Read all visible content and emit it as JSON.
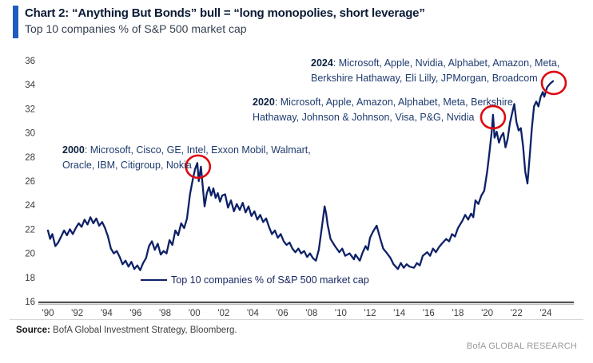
{
  "header": {
    "title": "Chart 2: “Anything But Bonds” bull = “long monopolies, short leverage”",
    "subtitle": "Top 10 companies % of S&P 500 market cap",
    "accent_color": "#1f5cbf"
  },
  "chart_data": {
    "type": "line",
    "title": "Top 10 companies % of S&P 500 market cap",
    "xlabel": "",
    "ylabel": "",
    "ylim": [
      16,
      36
    ],
    "xlim": [
      1989.8,
      2025.5
    ],
    "grid": false,
    "legend_position": "bottom-center",
    "line_color": "#0e2167",
    "circle_color": "#dd0a10",
    "y_ticks": [
      36,
      34,
      32,
      30,
      28,
      26,
      24,
      22,
      20,
      18,
      16
    ],
    "x_ticks": [
      {
        "value": 1990,
        "label": "'90"
      },
      {
        "value": 1992,
        "label": "'92"
      },
      {
        "value": 1994,
        "label": "'94"
      },
      {
        "value": 1996,
        "label": "'96"
      },
      {
        "value": 1998,
        "label": "'98"
      },
      {
        "value": 2000,
        "label": "'00"
      },
      {
        "value": 2002,
        "label": "'02"
      },
      {
        "value": 2004,
        "label": "'04"
      },
      {
        "value": 2006,
        "label": "'06"
      },
      {
        "value": 2008,
        "label": "'08"
      },
      {
        "value": 2010,
        "label": "'10"
      },
      {
        "value": 2012,
        "label": "'12"
      },
      {
        "value": 2014,
        "label": "'14"
      },
      {
        "value": 2016,
        "label": "'16"
      },
      {
        "value": 2018,
        "label": "'18"
      },
      {
        "value": 2020,
        "label": "'20"
      },
      {
        "value": 2022,
        "label": "'22"
      },
      {
        "value": 2024,
        "label": "'24"
      }
    ],
    "legend": {
      "label": "Top 10 companies % of S&P 500 market cap"
    },
    "annotations": [
      {
        "year": "2000",
        "line1_rest": ": Microsoft, Cisco, GE, Intel, Exxon Mobil, Walmart,",
        "line2": "Oracle, IBM, Citigroup, Nokia",
        "circle_at": [
          2000.25,
          27.2
        ]
      },
      {
        "year": "2020",
        "line1_rest": ": Microsoft, Apple, Amazon, Alphabet, Meta, Berkshire",
        "line2": "Hathaway, Johnson & Johnson, Visa, P&G, Nvidia",
        "circle_at": [
          2020.4,
          31.3
        ]
      },
      {
        "year": "2024",
        "line1_rest": ": Microsoft, Apple, Nvidia, Alphabet, Amazon, Meta,",
        "line2": "Berkshire Hathaway, Eli Lilly, JPMorgan, Broadcom",
        "circle_at": [
          2024.55,
          34.15
        ]
      }
    ],
    "series": [
      {
        "name": "Top 10 companies % of S&P 500 market cap",
        "color": "#0e2167",
        "points": [
          [
            1990,
            21.9
          ],
          [
            1990.15,
            21.2
          ],
          [
            1990.3,
            21.6
          ],
          [
            1990.5,
            20.6
          ],
          [
            1990.7,
            20.9
          ],
          [
            1990.9,
            21.4
          ],
          [
            1991.1,
            21.9
          ],
          [
            1991.3,
            21.5
          ],
          [
            1991.5,
            22
          ],
          [
            1991.7,
            21.6
          ],
          [
            1991.9,
            22.1
          ],
          [
            1992.1,
            22.5
          ],
          [
            1992.3,
            22.2
          ],
          [
            1992.5,
            22.8
          ],
          [
            1992.7,
            22.4
          ],
          [
            1992.9,
            23
          ],
          [
            1993.1,
            22.5
          ],
          [
            1993.3,
            22.9
          ],
          [
            1993.5,
            22.3
          ],
          [
            1993.7,
            22.6
          ],
          [
            1993.9,
            22.1
          ],
          [
            1994.1,
            21.4
          ],
          [
            1994.3,
            20.4
          ],
          [
            1994.5,
            20
          ],
          [
            1994.7,
            20.2
          ],
          [
            1994.9,
            19.7
          ],
          [
            1995.1,
            19.1
          ],
          [
            1995.3,
            19.4
          ],
          [
            1995.5,
            18.9
          ],
          [
            1995.7,
            19.3
          ],
          [
            1995.9,
            18.7
          ],
          [
            1996.1,
            19
          ],
          [
            1996.3,
            18.6
          ],
          [
            1996.5,
            19.2
          ],
          [
            1996.7,
            19.6
          ],
          [
            1996.9,
            20.6
          ],
          [
            1997.1,
            21
          ],
          [
            1997.3,
            20.3
          ],
          [
            1997.5,
            20.8
          ],
          [
            1997.7,
            19.9
          ],
          [
            1997.9,
            20.2
          ],
          [
            1998.1,
            20
          ],
          [
            1998.3,
            21.1
          ],
          [
            1998.5,
            20.7
          ],
          [
            1998.7,
            21.9
          ],
          [
            1998.9,
            21.5
          ],
          [
            1999.1,
            22.5
          ],
          [
            1999.3,
            22.1
          ],
          [
            1999.5,
            22.9
          ],
          [
            1999.7,
            24.9
          ],
          [
            1999.9,
            26.2
          ],
          [
            2000.05,
            27
          ],
          [
            2000.2,
            27.5
          ],
          [
            2000.3,
            26
          ],
          [
            2000.45,
            27.2
          ],
          [
            2000.6,
            25.2
          ],
          [
            2000.7,
            23.9
          ],
          [
            2000.85,
            25
          ],
          [
            2001,
            25.5
          ],
          [
            2001.15,
            24.8
          ],
          [
            2001.3,
            25.4
          ],
          [
            2001.45,
            24.6
          ],
          [
            2001.6,
            25
          ],
          [
            2001.75,
            24.3
          ],
          [
            2001.9,
            24.8
          ],
          [
            2002.1,
            24.9
          ],
          [
            2002.3,
            23.8
          ],
          [
            2002.5,
            24.4
          ],
          [
            2002.7,
            23.5
          ],
          [
            2002.9,
            24.1
          ],
          [
            2003.1,
            23.6
          ],
          [
            2003.3,
            24.2
          ],
          [
            2003.5,
            23.4
          ],
          [
            2003.7,
            23.9
          ],
          [
            2003.9,
            23.1
          ],
          [
            2004.1,
            23.5
          ],
          [
            2004.3,
            22.8
          ],
          [
            2004.5,
            23.2
          ],
          [
            2004.7,
            22.6
          ],
          [
            2004.9,
            22.9
          ],
          [
            2005.1,
            22.2
          ],
          [
            2005.3,
            21.6
          ],
          [
            2005.5,
            21.9
          ],
          [
            2005.7,
            21.3
          ],
          [
            2005.9,
            21.6
          ],
          [
            2006.1,
            21
          ],
          [
            2006.3,
            20.7
          ],
          [
            2006.5,
            20.9
          ],
          [
            2006.7,
            20.4
          ],
          [
            2006.9,
            20.1
          ],
          [
            2007.1,
            20.4
          ],
          [
            2007.3,
            20
          ],
          [
            2007.5,
            20.2
          ],
          [
            2007.7,
            19.7
          ],
          [
            2007.9,
            20
          ],
          [
            2008.1,
            19.6
          ],
          [
            2008.3,
            19.4
          ],
          [
            2008.5,
            20.3
          ],
          [
            2008.7,
            22.1
          ],
          [
            2008.9,
            23.9
          ],
          [
            2009,
            23.3
          ],
          [
            2009.1,
            22.4
          ],
          [
            2009.3,
            21.2
          ],
          [
            2009.6,
            20.6
          ],
          [
            2009.9,
            20.1
          ],
          [
            2010.1,
            20.4
          ],
          [
            2010.3,
            19.8
          ],
          [
            2010.6,
            20
          ],
          [
            2010.9,
            19.5
          ],
          [
            2011,
            19.9
          ],
          [
            2011.3,
            19.4
          ],
          [
            2011.5,
            20.1
          ],
          [
            2011.7,
            20.6
          ],
          [
            2011.85,
            20.3
          ],
          [
            2012,
            21.3
          ],
          [
            2012.2,
            21.8
          ],
          [
            2012.45,
            22.3
          ],
          [
            2012.7,
            21.2
          ],
          [
            2012.9,
            20.4
          ],
          [
            2013.1,
            20.1
          ],
          [
            2013.4,
            19.6
          ],
          [
            2013.6,
            19.1
          ],
          [
            2013.9,
            18.7
          ],
          [
            2014.1,
            19.2
          ],
          [
            2014.3,
            18.8
          ],
          [
            2014.5,
            19.1
          ],
          [
            2014.7,
            18.9
          ],
          [
            2015,
            18.8
          ],
          [
            2015.2,
            19.2
          ],
          [
            2015.4,
            19
          ],
          [
            2015.6,
            19.8
          ],
          [
            2015.9,
            20.1
          ],
          [
            2016.1,
            19.8
          ],
          [
            2016.3,
            20.4
          ],
          [
            2016.5,
            20.1
          ],
          [
            2016.7,
            20.5
          ],
          [
            2016.9,
            20.8
          ],
          [
            2017.2,
            21.2
          ],
          [
            2017.4,
            21
          ],
          [
            2017.6,
            21.6
          ],
          [
            2017.8,
            21.4
          ],
          [
            2018,
            22.1
          ],
          [
            2018.3,
            22.7
          ],
          [
            2018.5,
            23.2
          ],
          [
            2018.7,
            22.8
          ],
          [
            2018.9,
            23.3
          ],
          [
            2019.05,
            23
          ],
          [
            2019.2,
            24.4
          ],
          [
            2019.4,
            24.1
          ],
          [
            2019.6,
            24.8
          ],
          [
            2019.8,
            25.2
          ],
          [
            2020,
            26.8
          ],
          [
            2020.15,
            28.3
          ],
          [
            2020.3,
            30
          ],
          [
            2020.4,
            31.5
          ],
          [
            2020.5,
            29.6
          ],
          [
            2020.65,
            30.1
          ],
          [
            2020.8,
            29.2
          ],
          [
            2020.95,
            29.7
          ],
          [
            2021.1,
            30
          ],
          [
            2021.25,
            28.8
          ],
          [
            2021.4,
            29.5
          ],
          [
            2021.55,
            30.8
          ],
          [
            2021.7,
            31.6
          ],
          [
            2021.85,
            32.4
          ],
          [
            2022,
            30.9
          ],
          [
            2022.15,
            30.2
          ],
          [
            2022.3,
            30.4
          ],
          [
            2022.45,
            28.9
          ],
          [
            2022.6,
            26.8
          ],
          [
            2022.75,
            25.8
          ],
          [
            2022.9,
            28
          ],
          [
            2023.05,
            30.4
          ],
          [
            2023.2,
            32.2
          ],
          [
            2023.35,
            32.6
          ],
          [
            2023.5,
            32.2
          ],
          [
            2023.65,
            33
          ],
          [
            2023.8,
            33.4
          ],
          [
            2023.9,
            33
          ],
          [
            2024.1,
            33.8
          ],
          [
            2024.3,
            34.1
          ],
          [
            2024.5,
            34.3
          ]
        ]
      }
    ]
  },
  "footer": {
    "source_label": "Source:",
    "source_text": " BofA Global Investment Strategy, Bloomberg.",
    "brand": "BofA GLOBAL RESEARCH"
  }
}
